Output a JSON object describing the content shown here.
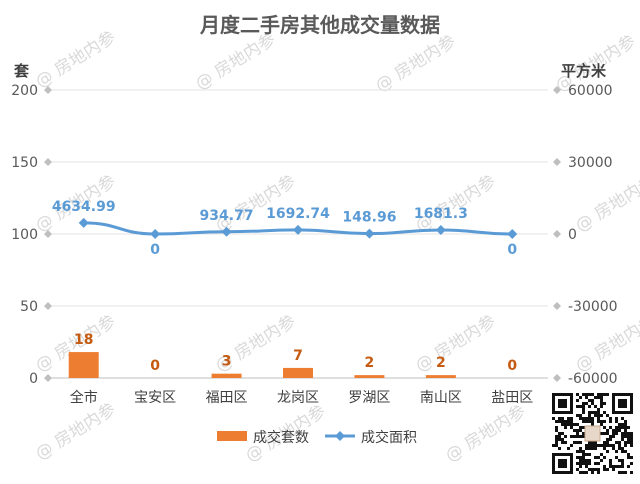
{
  "chart_data": {
    "type": "bar",
    "title": "月度二手房其他成交量数据",
    "left_unit": "套",
    "right_unit": "平方米",
    "categories": [
      "全市",
      "宝安区",
      "福田区",
      "龙岗区",
      "罗湖区",
      "南山区",
      "盐田区"
    ],
    "series": [
      {
        "name": "成交套数",
        "type": "bar",
        "axis": "left",
        "values": [
          18,
          0,
          3,
          7,
          2,
          2,
          0
        ],
        "labels": [
          "18",
          "0",
          "3",
          "7",
          "2",
          "2",
          "0"
        ],
        "color": "#ed7d31"
      },
      {
        "name": "成交面积",
        "type": "line",
        "axis": "right",
        "values": [
          4634.99,
          0,
          934.77,
          1692.74,
          148.96,
          1681.3,
          0
        ],
        "labels": [
          "4634.99",
          "0",
          "934.77",
          "1692.74",
          "148.96",
          "1681.3",
          "0"
        ],
        "color": "#5b9bd5"
      }
    ],
    "ylim_left": [
      0,
      200
    ],
    "yticks_left": [
      "0",
      "50",
      "100",
      "150",
      "200"
    ],
    "ylim_right": [
      -60000,
      60000
    ],
    "yticks_right": [
      "-60000",
      "-30000",
      "0",
      "30000",
      "60000"
    ],
    "grid": true,
    "legend": "bottom",
    "watermark": "@ 房地内参"
  }
}
